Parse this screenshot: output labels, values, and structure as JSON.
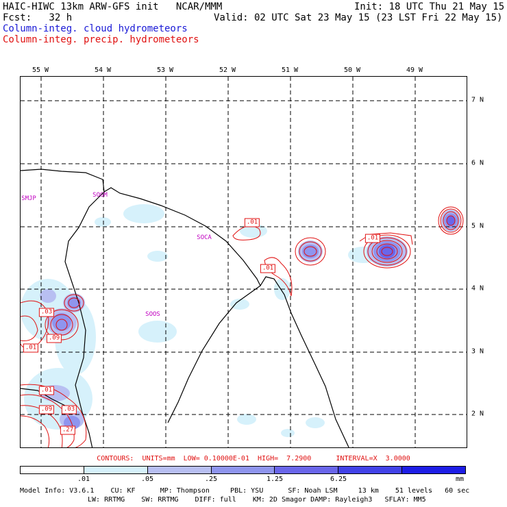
{
  "header": {
    "title": "HAIC-HIWC 13km ARW-GFS init   NCAR/MMM",
    "init": "Init: 18 UTC Thu 21 May 15",
    "fcst": "Fcst:   32 h",
    "valid": "Valid: 02 UTC Sat 23 May 15 (23 LST Fri 22 May 15)",
    "legend_cloud": "Column-integ. cloud hydrometeors",
    "legend_precip": "Column-integ. precip. hydrometeors"
  },
  "colors": {
    "cloud_text": "#1a1ad6",
    "precip_text": "#e01010",
    "site_text": "#c000c0",
    "shade_1": "#ffffff",
    "shade_2": "#d6f1fb",
    "shade_3": "#b8bff2",
    "shade_4": "#8f95ee",
    "shade_5": "#6a66ea",
    "shade_6": "#4242e8",
    "shade_7": "#1e1ee6"
  },
  "map": {
    "longitude_labels": [
      "55 W",
      "54 W",
      "53 W",
      "52 W",
      "51 W",
      "50 W",
      "49 W"
    ],
    "latitude_labels": [
      "7 N",
      "6 N",
      "5 N",
      "4 N",
      "3 N",
      "2 N"
    ],
    "sites": [
      "SMJP",
      "SOGM",
      "SOCA",
      "SOOS"
    ],
    "contour_labels": [
      ".01",
      ".01",
      ".01",
      ".03",
      ".09",
      ".01",
      ".01",
      ".09",
      ".03",
      ".27"
    ]
  },
  "footer": {
    "contours": "CONTOURS:  UNITS=mm  LOW= 0.10000E-01  HIGH=  7.2900      INTERVAL=X  3.0000",
    "colorbar_ticks": [
      ".01",
      ".05",
      ".25",
      "1.25",
      "6.25"
    ],
    "colorbar_units": "mm",
    "model_info_1": "Model Info: V3.6.1    CU: KF      MP: Thompson     PBL: YSU      SF: Noah LSM     13 km    51 levels   60 sec",
    "model_info_2": "LW: RRTMG    SW: RRTMG    DIFF: full    KM: 2D Smagor DAMP: Rayleigh3   SFLAY: MM5"
  }
}
